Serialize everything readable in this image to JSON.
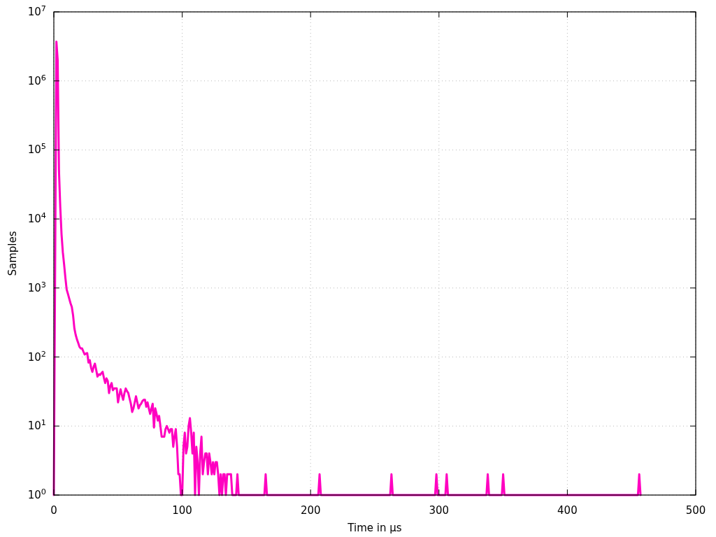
{
  "chart_data": {
    "type": "line",
    "xlabel": "Time in µs",
    "ylabel": "Samples",
    "log": "y",
    "grid": true,
    "color": "#ff00c0",
    "line_style": "solid",
    "marker": "none",
    "xlim": [
      0,
      500
    ],
    "xticks": [
      0,
      100,
      200,
      300,
      400,
      500
    ],
    "ylim": [
      1,
      10000000
    ],
    "yticks": [
      {
        "value": 1,
        "label": "10$^{0}$"
      },
      {
        "value": 10,
        "label": "10$^{1}$"
      },
      {
        "value": 100,
        "label": "10$^{2}$"
      },
      {
        "value": 1000,
        "label": "10$^{3}$"
      },
      {
        "value": 10000,
        "label": "10$^{4}$"
      },
      {
        "value": 100000,
        "label": "10$^{5}$"
      },
      {
        "value": 1000000,
        "label": "10$^{6}$"
      },
      {
        "value": 10000000,
        "label": "10$^{7}$"
      }
    ],
    "x": [
      0,
      1,
      2,
      3,
      4,
      5,
      6,
      7,
      8,
      9,
      10,
      11,
      12,
      13,
      14,
      15,
      16,
      17,
      18,
      19,
      20,
      21,
      22,
      23,
      24,
      25,
      26,
      27,
      28,
      29,
      30,
      31,
      32,
      33,
      34,
      35,
      36,
      37,
      38,
      39,
      40,
      41,
      42,
      43,
      44,
      45,
      46,
      47,
      48,
      49,
      50,
      51,
      52,
      53,
      54,
      55,
      56,
      57,
      58,
      59,
      60,
      61,
      62,
      63,
      64,
      65,
      66,
      67,
      68,
      69,
      70,
      71,
      72,
      73,
      74,
      75,
      76,
      77,
      78,
      79,
      80,
      81,
      82,
      83,
      84,
      85,
      86,
      87,
      88,
      89,
      90,
      91,
      92,
      93,
      94,
      95,
      96,
      97,
      98,
      99,
      100,
      101,
      102,
      103,
      104,
      105,
      106,
      107,
      108,
      109,
      110,
      111,
      112,
      113,
      114,
      115,
      116,
      117,
      118,
      119,
      120,
      121,
      122,
      123,
      124,
      125,
      126,
      127,
      128,
      129,
      130,
      131,
      132,
      133,
      134,
      135,
      136,
      137,
      138,
      139,
      142,
      143,
      144,
      164,
      165,
      166,
      206,
      207,
      208,
      262,
      263,
      264,
      297,
      298,
      299,
      305,
      306,
      307,
      337,
      338,
      339,
      349,
      350,
      351,
      455,
      456,
      457
    ],
    "values": [
      1,
      2000,
      3700000,
      2000000,
      50000,
      15000,
      6000,
      3300,
      2200,
      1400,
      950,
      820,
      700,
      600,
      530,
      400,
      260,
      210,
      180,
      160,
      140,
      133,
      133,
      120,
      109,
      112,
      114,
      83,
      90,
      70,
      61,
      72,
      80,
      65,
      52,
      56,
      55,
      58,
      61,
      50,
      42,
      49,
      45,
      30,
      38,
      42,
      33,
      35,
      35,
      35,
      22,
      28,
      34,
      28,
      24,
      30,
      35,
      32,
      30,
      25,
      21,
      16,
      18,
      22,
      27,
      22,
      18,
      20,
      21,
      23,
      24,
      24,
      19,
      22,
      18,
      15,
      18,
      21,
      9.5,
      18,
      15,
      12,
      14,
      10,
      7,
      7,
      7,
      9,
      10,
      9,
      8,
      9,
      9,
      5,
      7,
      9,
      5,
      2,
      2,
      1,
      1,
      5,
      8,
      4,
      5,
      10,
      13,
      8,
      4,
      8,
      1,
      5,
      3,
      1,
      4,
      7,
      2,
      3,
      4,
      4,
      2,
      4,
      3,
      2,
      3,
      2,
      3,
      3,
      2,
      1,
      2,
      1,
      2,
      2,
      1,
      2,
      2,
      2,
      2,
      1,
      1,
      2,
      1,
      1,
      2,
      1,
      1,
      2,
      1,
      1,
      2,
      1,
      1,
      2,
      1,
      1,
      2,
      1,
      1,
      2,
      1,
      1,
      2,
      1,
      1,
      2,
      1
    ]
  }
}
